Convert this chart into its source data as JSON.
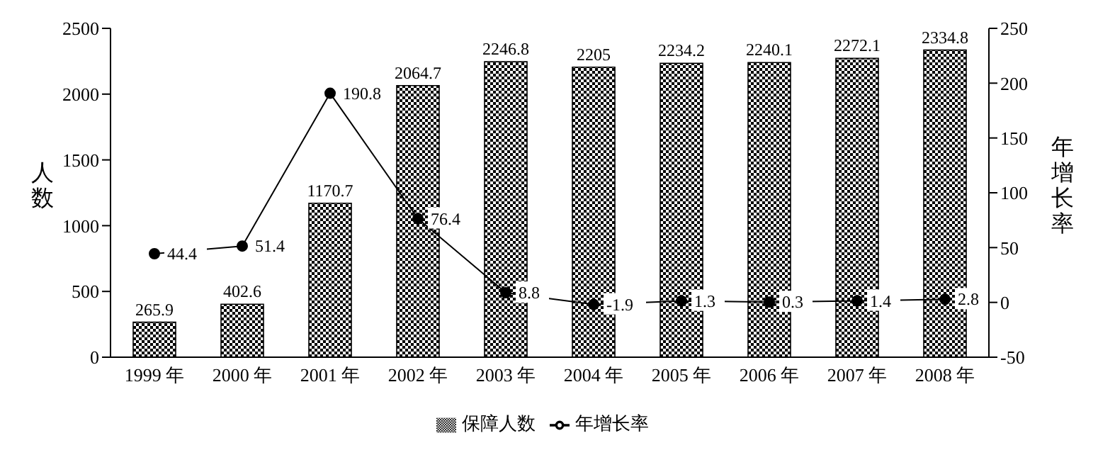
{
  "chart_data": {
    "type": "bar",
    "categories": [
      "1999 年",
      "2000 年",
      "2001 年",
      "2002 年",
      "2003 年",
      "2004 年",
      "2005 年",
      "2006 年",
      "2007 年",
      "2008 年"
    ],
    "series": [
      {
        "name": "保障人数",
        "color": "#000000",
        "values": [
          265.9,
          402.6,
          1170.7,
          2064.7,
          2246.8,
          2205,
          2234.2,
          2240.1,
          2272.1,
          2334.8
        ]
      },
      {
        "name": "年增长率",
        "type": "line",
        "axis": "y2",
        "color": "#000000",
        "values": [
          44.4,
          51.4,
          190.8,
          76.4,
          8.8,
          -1.9,
          1.3,
          0.3,
          1.4,
          2.8
        ]
      }
    ],
    "ylabel": "人数",
    "y2label": "年增长率",
    "ylim": [
      0,
      2500
    ],
    "yticks": [
      0,
      500,
      1000,
      1500,
      2000,
      2500
    ],
    "y2lim": [
      -50,
      250
    ],
    "y2ticks": [
      -50,
      0,
      50,
      100,
      150,
      200,
      250
    ],
    "data_labels": true,
    "legend": "bottom",
    "marker": "circle",
    "line_style": "solid"
  }
}
